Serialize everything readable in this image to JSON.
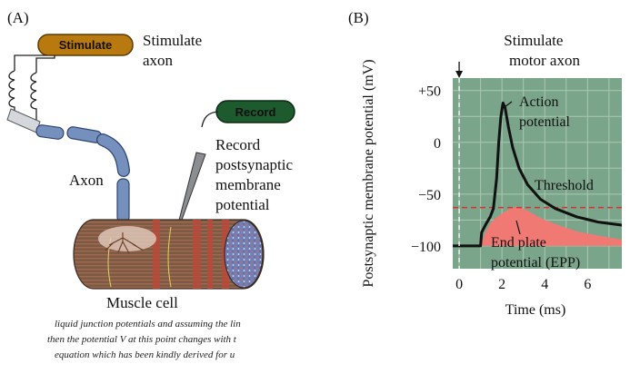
{
  "panel_a": {
    "label": "(A)",
    "stimulate_box": "Stimulate",
    "stimulate_axon": [
      "Stimulate",
      "axon"
    ],
    "record_box": "Record",
    "record_text": [
      "Record",
      "postsynaptic",
      "membrane",
      "potential"
    ],
    "axon_label": "Axon",
    "muscle_label": "Muscle cell",
    "colors": {
      "stimulate_box": "#b8790f",
      "record_box": "#1d5a2e",
      "axon": "#7590bd"
    }
  },
  "panel_b": {
    "label": "(B)",
    "stimulate_motor_axon": [
      "Stimulate",
      "motor axon"
    ],
    "chart_data": {
      "type": "line",
      "xlabel": "Time (ms)",
      "ylabel": "Postsynaptic membrane potential (mV)",
      "x_ticks": [
        "0",
        "2",
        "4",
        "6"
      ],
      "y_ticks": [
        "+50",
        "0",
        "−50",
        "−100"
      ],
      "xlim": [
        -0.3,
        7.6
      ],
      "ylim": [
        -122,
        62
      ],
      "threshold_mv": -63,
      "stimulus_time_ms": 0,
      "action_potential": [
        [
          -0.3,
          -100
        ],
        [
          1.0,
          -100
        ],
        [
          1.05,
          -87
        ],
        [
          1.25,
          -79
        ],
        [
          1.45,
          -72
        ],
        [
          1.6,
          -64
        ],
        [
          1.75,
          -35
        ],
        [
          1.85,
          0
        ],
        [
          1.95,
          25
        ],
        [
          2.05,
          38
        ],
        [
          2.15,
          33
        ],
        [
          2.3,
          15
        ],
        [
          2.5,
          -5
        ],
        [
          2.8,
          -25
        ],
        [
          3.2,
          -41
        ],
        [
          3.8,
          -55
        ],
        [
          4.5,
          -64
        ],
        [
          5.5,
          -72
        ],
        [
          6.5,
          -77
        ],
        [
          7.6,
          -80
        ]
      ],
      "end_plate_potential": [
        [
          1.0,
          -100
        ],
        [
          1.2,
          -88
        ],
        [
          1.5,
          -77
        ],
        [
          1.9,
          -70
        ],
        [
          2.3,
          -65
        ],
        [
          2.7,
          -62
        ],
        [
          3.2,
          -66
        ],
        [
          3.8,
          -73
        ],
        [
          4.5,
          -79
        ],
        [
          5.5,
          -86
        ],
        [
          6.5,
          -90
        ],
        [
          7.6,
          -94
        ]
      ],
      "annotations": [
        "Action",
        "potential",
        "Threshold",
        "End plate",
        "potential (EPP)"
      ],
      "grid": true,
      "colors": {
        "background": "#7ba58b",
        "grid": "#a9c8b2",
        "trace": "#111111",
        "epp_fill": "#f07a73",
        "threshold": "#d7322f"
      }
    }
  },
  "scan_text": [
    "liquid junction potentials  and assuming the lin",
    "then the potential V at this point changes with t",
    "equation which has been kindly derived for u"
  ]
}
